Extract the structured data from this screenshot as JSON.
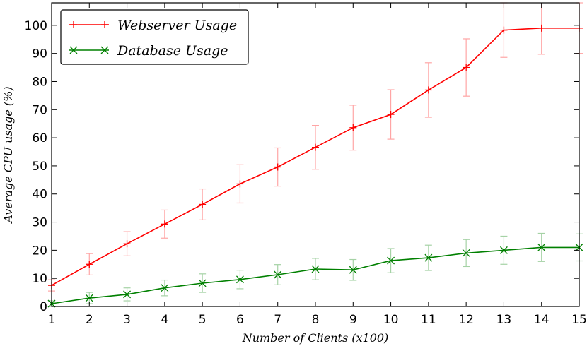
{
  "chart_data": {
    "type": "line",
    "xlabel": "Number of Clients (x100)",
    "ylabel": "Average CPU usage (%)",
    "x": [
      1,
      2,
      3,
      4,
      5,
      6,
      7,
      8,
      9,
      10,
      11,
      12,
      13,
      14,
      15
    ],
    "xlim": [
      1,
      15
    ],
    "ylim": [
      0,
      108
    ],
    "yticks": [
      0,
      10,
      20,
      30,
      40,
      50,
      60,
      70,
      80,
      90,
      100
    ],
    "grid": false,
    "legend_position": "top-left",
    "series": [
      {
        "name": "Webserver Usage",
        "color": "#ff0000",
        "marker": "plus",
        "values": [
          7.5,
          15,
          22.3,
          29.3,
          36.3,
          43.6,
          49.6,
          56.6,
          63.6,
          68.3,
          77,
          85,
          98.3,
          99,
          99
        ],
        "errors": [
          2,
          3.8,
          4.3,
          5,
          5.5,
          6.8,
          6.8,
          7.8,
          8,
          8.8,
          9.7,
          10.2,
          9.7,
          9.3,
          9
        ]
      },
      {
        "name": "Database Usage",
        "color": "#008000",
        "marker": "x",
        "values": [
          1,
          3,
          4.3,
          6.6,
          8.3,
          9.6,
          11.3,
          13.3,
          13,
          16.3,
          17.3,
          19,
          20,
          21,
          21
        ],
        "errors": [
          1,
          2,
          2.3,
          2.8,
          3.3,
          3.3,
          3.6,
          3.8,
          3.7,
          4.3,
          4.5,
          4.8,
          5,
          5,
          4.8
        ]
      }
    ]
  }
}
